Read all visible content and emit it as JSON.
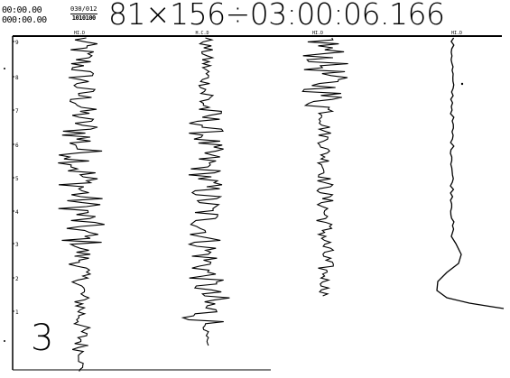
{
  "header": {
    "timecode_top": "00:00.00",
    "timecode_bottom": "000:00.00",
    "mini_top": "030/012",
    "mini_bottom": "1010100",
    "readout": "81×156÷03:00:06.166"
  },
  "channels": [
    {
      "label": "HI.D"
    },
    {
      "label": "H.C.D"
    },
    {
      "label": "HI.D"
    },
    {
      "label": "HI.D"
    }
  ],
  "axis": {
    "ticks": [
      "9",
      "8",
      "7",
      "6",
      "5",
      "4",
      "3",
      "2",
      "1"
    ]
  },
  "corner_number": "3",
  "colors": {
    "trace": "#000000",
    "background": "#ffffff"
  }
}
